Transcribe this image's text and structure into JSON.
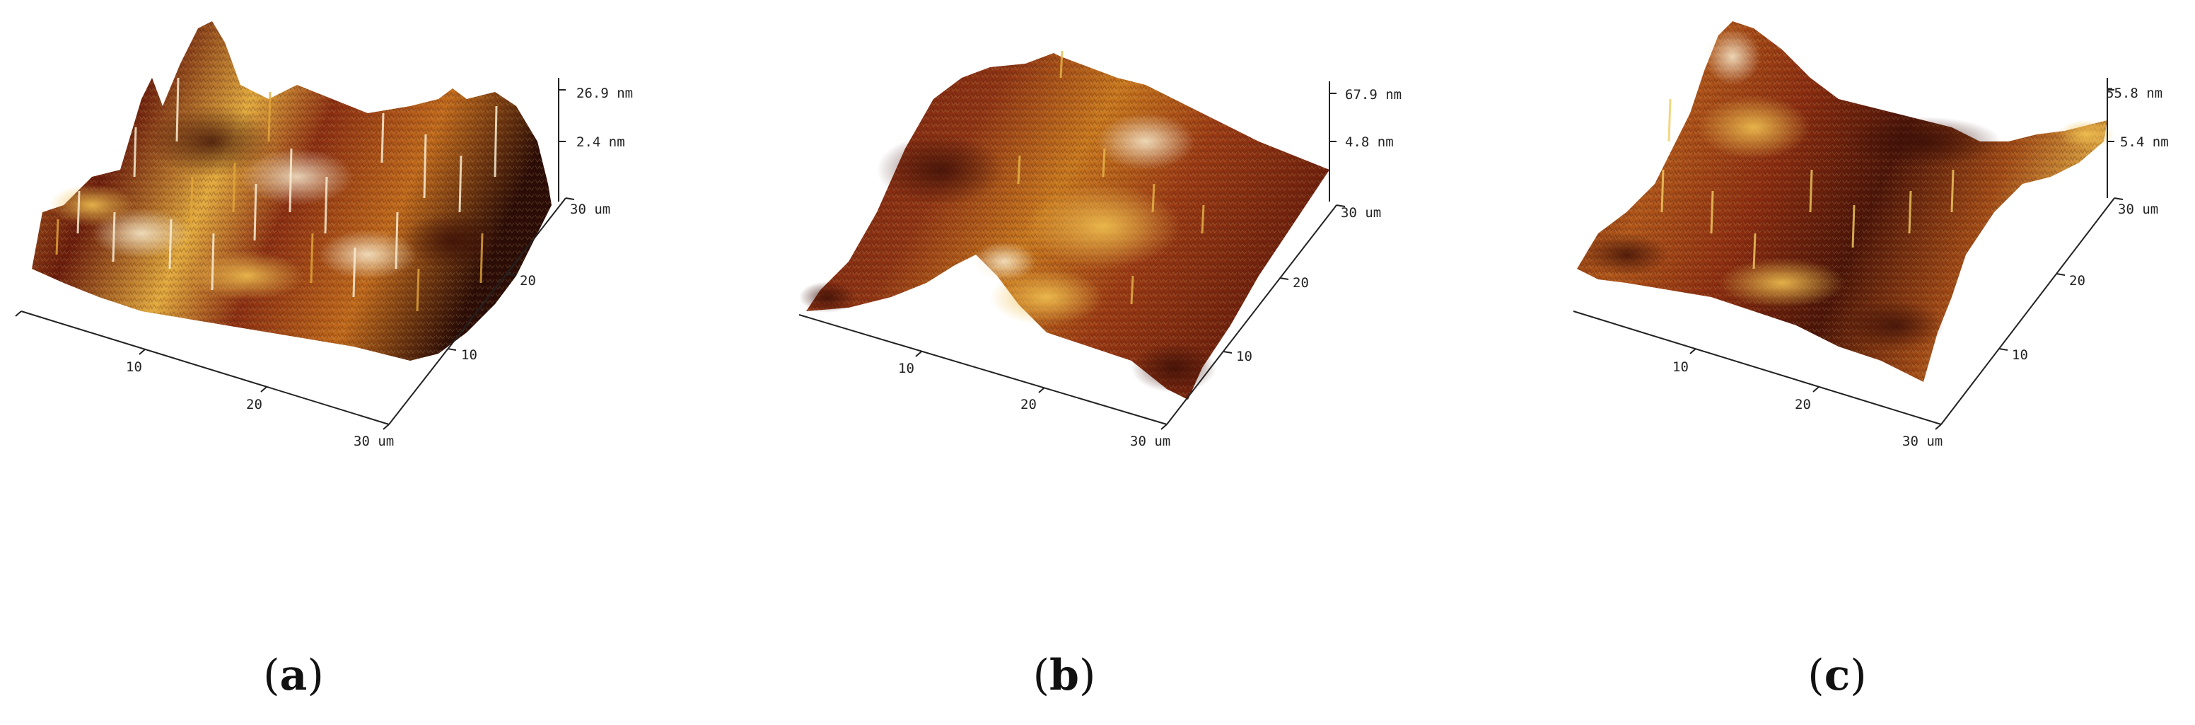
{
  "colors": {
    "dark": "#2a0c06",
    "mid": "#7a2410",
    "orange": "#c8701a",
    "gold": "#e4b040",
    "light": "#f7ecd2"
  },
  "panels": [
    {
      "label": "a",
      "x_ticks": [
        "10",
        "20",
        "30 um"
      ],
      "y_ticks": [
        "10",
        "20",
        "30 um"
      ],
      "z_ticks": [
        "26.9 nm",
        "2.4 nm"
      ]
    },
    {
      "label": "b",
      "x_ticks": [
        "10",
        "20",
        "30 um"
      ],
      "y_ticks": [
        "10",
        "20",
        "30 um"
      ],
      "z_ticks": [
        "67.9 nm",
        "4.8 nm"
      ]
    },
    {
      "label": "c",
      "x_ticks": [
        "10",
        "20",
        "30 um"
      ],
      "y_ticks": [
        "10",
        "20",
        "30 um"
      ],
      "z_ticks": [
        "55.8 nm",
        "5.4 nm"
      ]
    }
  ]
}
